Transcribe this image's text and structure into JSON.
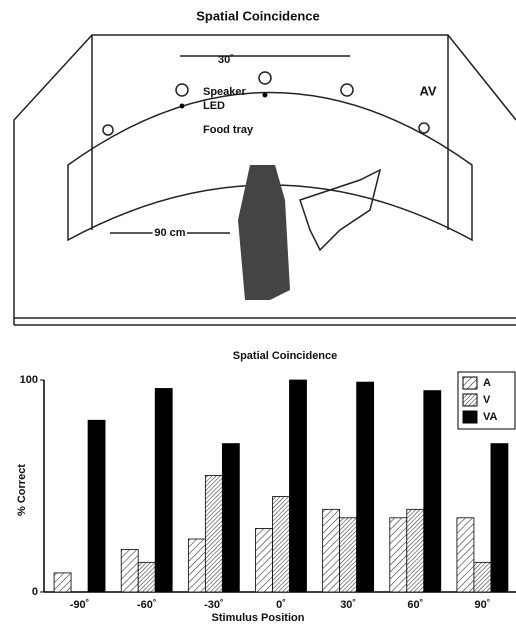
{
  "diagram": {
    "title": "Spatial Coincidence",
    "angle": "30˚",
    "speaker": "Speaker",
    "led": "LED",
    "food_tray": "Food tray",
    "av": "AV",
    "distance": "90 cm"
  },
  "chart_data": {
    "type": "bar",
    "title": "Spatial Coincidence",
    "xlabel": "Stimulus Position",
    "ylabel": "% Correct",
    "categories": [
      "-90˚",
      "-60˚",
      "-30˚",
      "0˚",
      "30˚",
      "60˚",
      "90˚"
    ],
    "series": [
      {
        "name": "A",
        "color": "#ffffff",
        "hatch": "sparse",
        "values": [
          9,
          20,
          25,
          30,
          39,
          35,
          35
        ]
      },
      {
        "name": "V",
        "color": "#ffffff",
        "hatch": "dense",
        "values": [
          0,
          14,
          55,
          45,
          35,
          39,
          14
        ]
      },
      {
        "name": "VA",
        "color": "#000000",
        "hatch": "none",
        "values": [
          81,
          96,
          70,
          100,
          99,
          95,
          70
        ]
      }
    ],
    "ylim": [
      0,
      100
    ],
    "yticks": [
      0,
      100
    ],
    "grid": false,
    "legend": "top-right"
  }
}
